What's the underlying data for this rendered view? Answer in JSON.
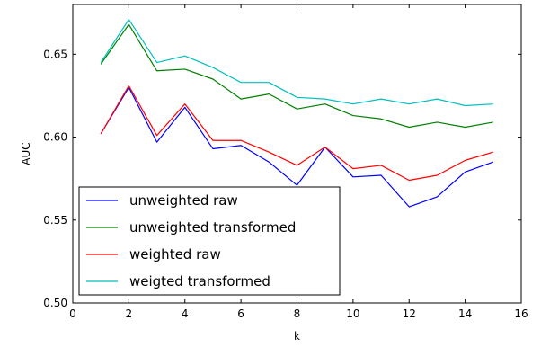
{
  "chart_data": {
    "type": "line",
    "title": "",
    "xlabel": "k",
    "ylabel": "AUC",
    "xlim": [
      0,
      16
    ],
    "ylim": [
      0.5,
      0.68
    ],
    "xticks": [
      0,
      2,
      4,
      6,
      8,
      10,
      12,
      14,
      16
    ],
    "xtick_labels": [
      "0",
      "2",
      "4",
      "6",
      "8",
      "10",
      "12",
      "14",
      "16"
    ],
    "yticks": [
      0.5,
      0.55,
      0.6,
      0.65
    ],
    "ytick_labels": [
      "0.50",
      "0.55",
      "0.60",
      "0.65"
    ],
    "grid": false,
    "legend_position": "lower-left",
    "x": [
      1,
      2,
      3,
      4,
      5,
      6,
      7,
      8,
      9,
      10,
      11,
      12,
      13,
      14,
      15
    ],
    "series": [
      {
        "name": "unweighted raw",
        "color": "#0000ff",
        "values": [
          0.602,
          0.63,
          0.597,
          0.618,
          0.593,
          0.595,
          0.585,
          0.571,
          0.594,
          0.576,
          0.577,
          0.558,
          0.564,
          0.579,
          0.585
        ]
      },
      {
        "name": "unweighted transformed",
        "color": "#008000",
        "values": [
          0.644,
          0.668,
          0.64,
          0.641,
          0.635,
          0.623,
          0.626,
          0.617,
          0.62,
          0.613,
          0.611,
          0.606,
          0.609,
          0.606,
          0.609
        ]
      },
      {
        "name": "weighted raw",
        "color": "#ff0000",
        "values": [
          0.602,
          0.631,
          0.601,
          0.62,
          0.598,
          0.598,
          0.591,
          0.583,
          0.594,
          0.581,
          0.583,
          0.574,
          0.577,
          0.586,
          0.591
        ]
      },
      {
        "name": "weigted transformed",
        "color": "#00bfbf",
        "values": [
          0.645,
          0.671,
          0.645,
          0.649,
          0.642,
          0.633,
          0.633,
          0.624,
          0.623,
          0.62,
          0.623,
          0.62,
          0.623,
          0.619,
          0.62
        ]
      }
    ]
  }
}
